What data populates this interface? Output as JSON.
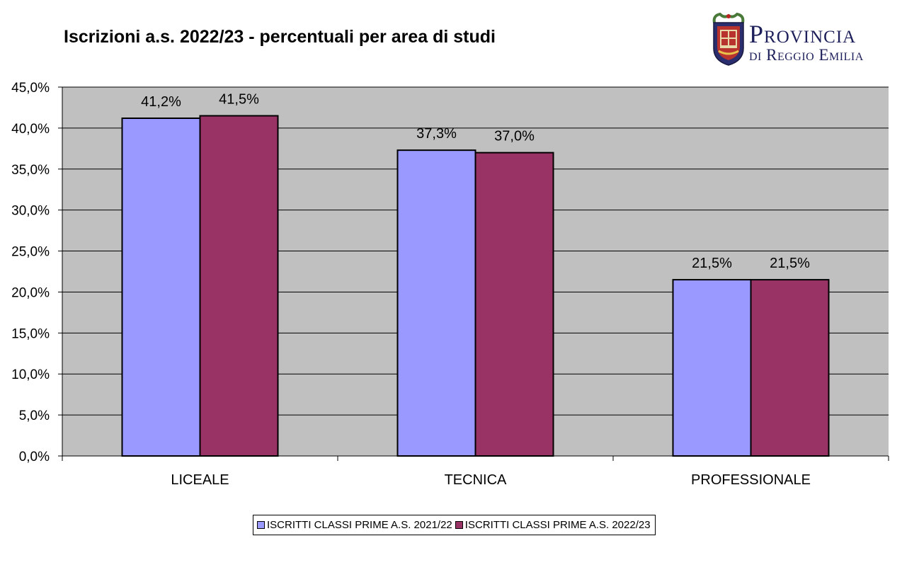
{
  "chart_data": {
    "type": "bar",
    "title": "Iscrizioni a.s. 2022/23 - percentuali per area di studi",
    "categories": [
      "LICEALE",
      "TECNICA",
      "PROFESSIONALE"
    ],
    "series": [
      {
        "name": "ISCRITTI CLASSI PRIME A.S. 2021/22",
        "color": "#9999ff",
        "values": [
          41.2,
          37.3,
          21.5
        ],
        "labels": [
          "41,2%",
          "37,3%",
          "21,5%"
        ]
      },
      {
        "name": "ISCRITTI CLASSI PRIME A.S. 2022/23",
        "color": "#993366",
        "values": [
          41.5,
          37.0,
          21.5
        ],
        "labels": [
          "41,5%",
          "37,0%",
          "21,5%"
        ]
      }
    ],
    "ylim": [
      0,
      45
    ],
    "yticks": [
      0,
      5,
      10,
      15,
      20,
      25,
      30,
      35,
      40,
      45
    ],
    "ytick_labels": [
      "0,0%",
      "5,0%",
      "10,0%",
      "15,0%",
      "20,0%",
      "25,0%",
      "30,0%",
      "35,0%",
      "40,0%",
      "45,0%"
    ],
    "xlabel": "",
    "ylabel": "",
    "grid": true,
    "plot_background": "#c0c0c0",
    "legend_position": "bottom"
  },
  "logo": {
    "line1": "Provincia",
    "line2": "di Reggio Emilia",
    "icon": "coat-of-arms-icon"
  }
}
